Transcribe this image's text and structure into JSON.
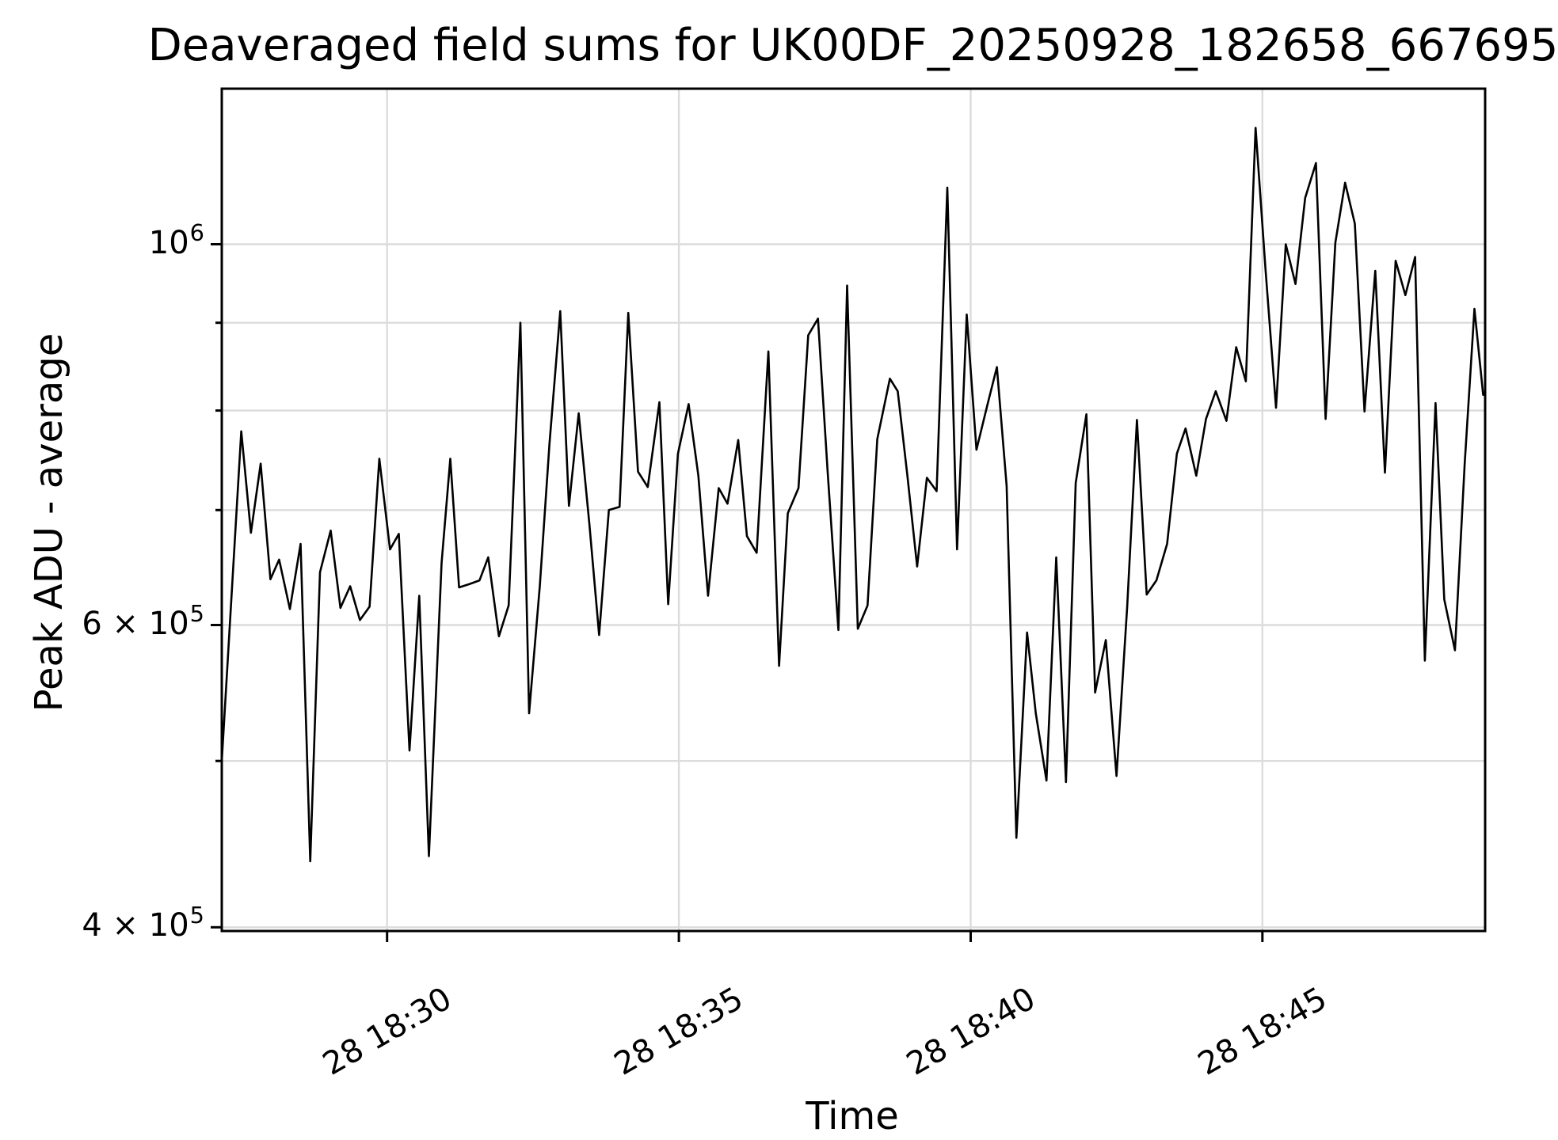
{
  "chart_data": {
    "type": "line",
    "title": "Deaveraged field sums for UK00DF_20250928_182658_667695",
    "xlabel": "Time",
    "ylabel": "Peak ADU - average",
    "yscale": "log",
    "grid": true,
    "legend": false,
    "line_color": "#000000",
    "grid_color": "#dcdcdc",
    "x_range": [
      "18:27:10",
      "18:48:49"
    ],
    "y_range": [
      398000,
      1232000
    ],
    "x_ticks": [
      {
        "time": "18:30:00",
        "label": "28 18:30"
      },
      {
        "time": "18:35:00",
        "label": "28 18:35"
      },
      {
        "time": "18:40:00",
        "label": "28 18:40"
      },
      {
        "time": "18:45:00",
        "label": "28 18:45"
      }
    ],
    "y_ticks": [
      {
        "value": 400000,
        "mantissa": "4 × 10",
        "exponent": "5"
      },
      {
        "value": 600000,
        "mantissa": "6 × 10",
        "exponent": "5"
      },
      {
        "value": 1000000,
        "mantissa": "10",
        "exponent": "6"
      }
    ],
    "y_minor_gridlines": [
      500000,
      700000,
      800000,
      900000
    ],
    "series": [
      {
        "name": "peak_adu_minus_average",
        "points": [
          [
            "18:27:10",
            500000
          ],
          [
            "18:27:30",
            778000
          ],
          [
            "18:27:40",
            679000
          ],
          [
            "18:27:50",
            745000
          ],
          [
            "18:28:00",
            638000
          ],
          [
            "18:28:09",
            655000
          ],
          [
            "18:28:20",
            613000
          ],
          [
            "18:28:31",
            669000
          ],
          [
            "18:28:41",
            437000
          ],
          [
            "18:28:51",
            644000
          ],
          [
            "18:29:02",
            681000
          ],
          [
            "18:29:12",
            614000
          ],
          [
            "18:29:22",
            632000
          ],
          [
            "18:29:32",
            604000
          ],
          [
            "18:29:42",
            615000
          ],
          [
            "18:29:52",
            750000
          ],
          [
            "18:30:03",
            664000
          ],
          [
            "18:30:12",
            678000
          ],
          [
            "18:30:23",
            507000
          ],
          [
            "18:30:33",
            624000
          ],
          [
            "18:30:43",
            440000
          ],
          [
            "18:30:56",
            652000
          ],
          [
            "18:31:05",
            750000
          ],
          [
            "18:31:14",
            631000
          ],
          [
            "18:31:25",
            634000
          ],
          [
            "18:31:35",
            637000
          ],
          [
            "18:31:44",
            657000
          ],
          [
            "18:31:55",
            591000
          ],
          [
            "18:32:05",
            616000
          ],
          [
            "18:32:17",
            900000
          ],
          [
            "18:32:26",
            533000
          ],
          [
            "18:32:37",
            632000
          ],
          [
            "18:32:47",
            766000
          ],
          [
            "18:32:58",
            914000
          ],
          [
            "18:33:07",
            704000
          ],
          [
            "18:33:17",
            797000
          ],
          [
            "18:33:28",
            687000
          ],
          [
            "18:33:38",
            592000
          ],
          [
            "18:33:48",
            700000
          ],
          [
            "18:33:59",
            703000
          ],
          [
            "18:34:08",
            912000
          ],
          [
            "18:34:18",
            737000
          ],
          [
            "18:34:28",
            722000
          ],
          [
            "18:34:40",
            809000
          ],
          [
            "18:34:49",
            617000
          ],
          [
            "18:34:59",
            755000
          ],
          [
            "18:35:10",
            807000
          ],
          [
            "18:35:20",
            733000
          ],
          [
            "18:35:30",
            624000
          ],
          [
            "18:35:41",
            721000
          ],
          [
            "18:35:50",
            706000
          ],
          [
            "18:36:01",
            769000
          ],
          [
            "18:36:10",
            676000
          ],
          [
            "18:36:20",
            661000
          ],
          [
            "18:36:32",
            866000
          ],
          [
            "18:36:43",
            568000
          ],
          [
            "18:36:52",
            697000
          ],
          [
            "18:37:03",
            721000
          ],
          [
            "18:37:13",
            885000
          ],
          [
            "18:37:23",
            905000
          ],
          [
            "18:37:33",
            736000
          ],
          [
            "18:37:44",
            596000
          ],
          [
            "18:37:53",
            946000
          ],
          [
            "18:38:04",
            597000
          ],
          [
            "18:38:14",
            616000
          ],
          [
            "18:38:24",
            770000
          ],
          [
            "18:38:37",
            835000
          ],
          [
            "18:38:45",
            821000
          ],
          [
            "18:38:55",
            733000
          ],
          [
            "18:39:05",
            649000
          ],
          [
            "18:39:15",
            731000
          ],
          [
            "18:39:25",
            718000
          ],
          [
            "18:39:36",
            1079000
          ],
          [
            "18:39:46",
            664000
          ],
          [
            "18:39:56",
            910000
          ],
          [
            "18:40:06",
            759000
          ],
          [
            "18:40:17",
            805000
          ],
          [
            "18:40:27",
            848000
          ],
          [
            "18:40:37",
            723000
          ],
          [
            "18:40:47",
            451000
          ],
          [
            "18:40:58",
            594000
          ],
          [
            "18:41:07",
            533000
          ],
          [
            "18:41:18",
            487000
          ],
          [
            "18:41:28",
            657000
          ],
          [
            "18:41:38",
            486000
          ],
          [
            "18:41:48",
            726000
          ],
          [
            "18:41:59",
            796000
          ],
          [
            "18:42:08",
            548000
          ],
          [
            "18:42:19",
            588000
          ],
          [
            "18:42:30",
            490000
          ],
          [
            "18:42:41",
            615000
          ],
          [
            "18:42:51",
            790000
          ],
          [
            "18:43:01",
            625000
          ],
          [
            "18:43:11",
            637000
          ],
          [
            "18:43:22",
            669000
          ],
          [
            "18:43:32",
            755000
          ],
          [
            "18:43:41",
            781000
          ],
          [
            "18:43:52",
            733000
          ],
          [
            "18:44:02",
            791000
          ],
          [
            "18:44:12",
            821000
          ],
          [
            "18:44:23",
            789000
          ],
          [
            "18:44:33",
            871000
          ],
          [
            "18:44:43",
            832000
          ],
          [
            "18:44:53",
            1169000
          ],
          [
            "18:45:03",
            970000
          ],
          [
            "18:45:14",
            803000
          ],
          [
            "18:45:24",
            1000000
          ],
          [
            "18:45:34",
            948000
          ],
          [
            "18:45:44",
            1064000
          ],
          [
            "18:45:55",
            1115000
          ],
          [
            "18:46:05",
            791000
          ],
          [
            "18:46:15",
            1002000
          ],
          [
            "18:46:25",
            1086000
          ],
          [
            "18:46:35",
            1028000
          ],
          [
            "18:46:45",
            799000
          ],
          [
            "18:46:56",
            965000
          ],
          [
            "18:47:06",
            736000
          ],
          [
            "18:47:17",
            978000
          ],
          [
            "18:47:27",
            934000
          ],
          [
            "18:47:37",
            983000
          ],
          [
            "18:47:47",
            572000
          ],
          [
            "18:47:58",
            808000
          ],
          [
            "18:48:07",
            621000
          ],
          [
            "18:48:18",
            580000
          ],
          [
            "18:48:28",
            745000
          ],
          [
            "18:48:38",
            917000
          ],
          [
            "18:48:47",
            817000
          ]
        ]
      }
    ]
  }
}
